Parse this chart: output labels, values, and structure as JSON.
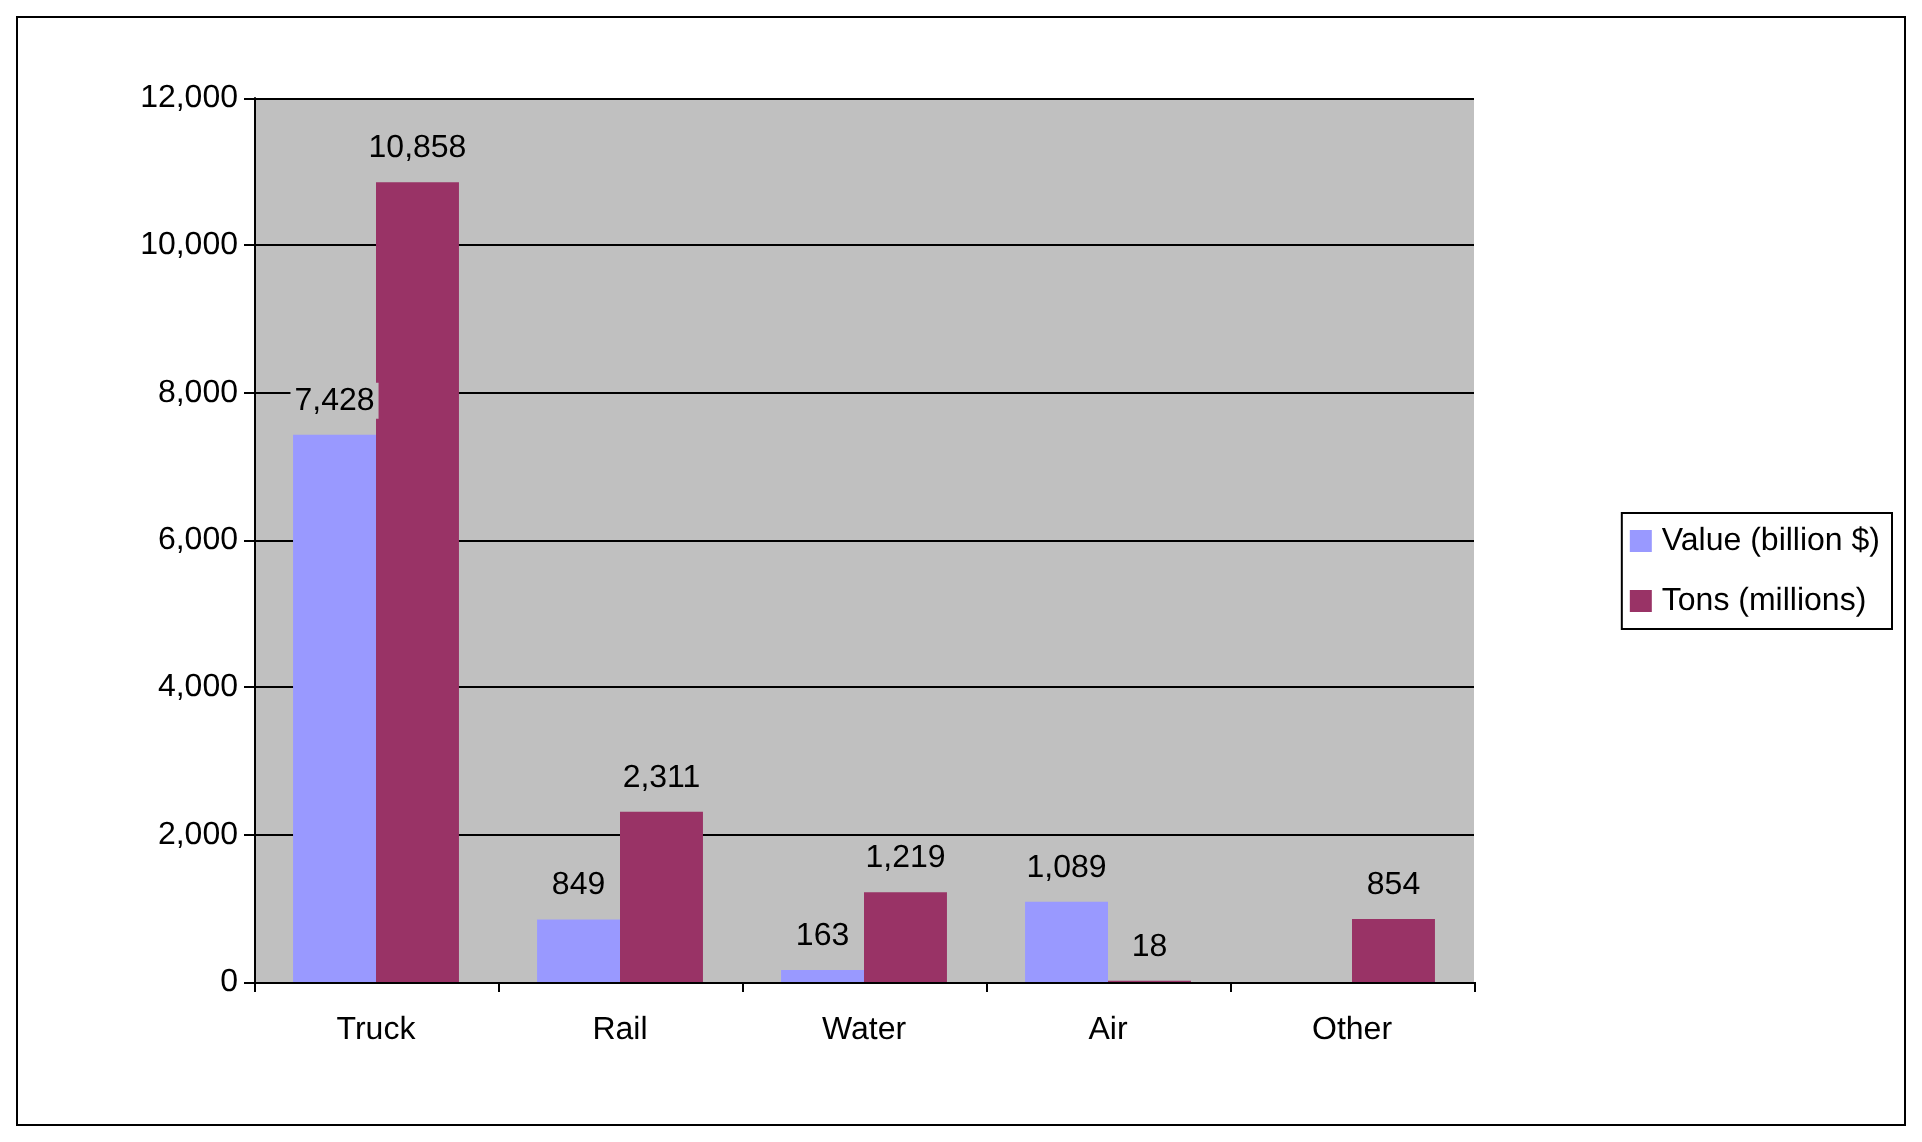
{
  "chart_data": {
    "type": "bar",
    "categories": [
      "Truck",
      "Rail",
      "Water",
      "Air",
      "Other"
    ],
    "series": [
      {
        "name": "Value (billion $)",
        "color": "#9999ff",
        "values": [
          7428,
          849,
          163,
          1089,
          null
        ],
        "value_labels": [
          "7,428",
          "849",
          "163",
          "1,089",
          null
        ]
      },
      {
        "name": "Tons (millions)",
        "color": "#993366",
        "values": [
          10858,
          2311,
          1219,
          18,
          854
        ],
        "value_labels": [
          "10,858",
          "2,311",
          "1,219",
          "18",
          "854"
        ]
      }
    ],
    "ylim": [
      0,
      12000
    ],
    "yticks": [
      0,
      {
        "value": 2000,
        "label": "2,000"
      },
      {
        "value": 4000,
        "label": "4,000"
      },
      {
        "value": 6000,
        "label": "6,000"
      },
      {
        "value": 8000,
        "label": "8,000"
      },
      {
        "value": 10000,
        "label": "10,000"
      },
      {
        "value": 12000,
        "label": "12,000"
      }
    ],
    "grid": "y",
    "legend": "right"
  }
}
